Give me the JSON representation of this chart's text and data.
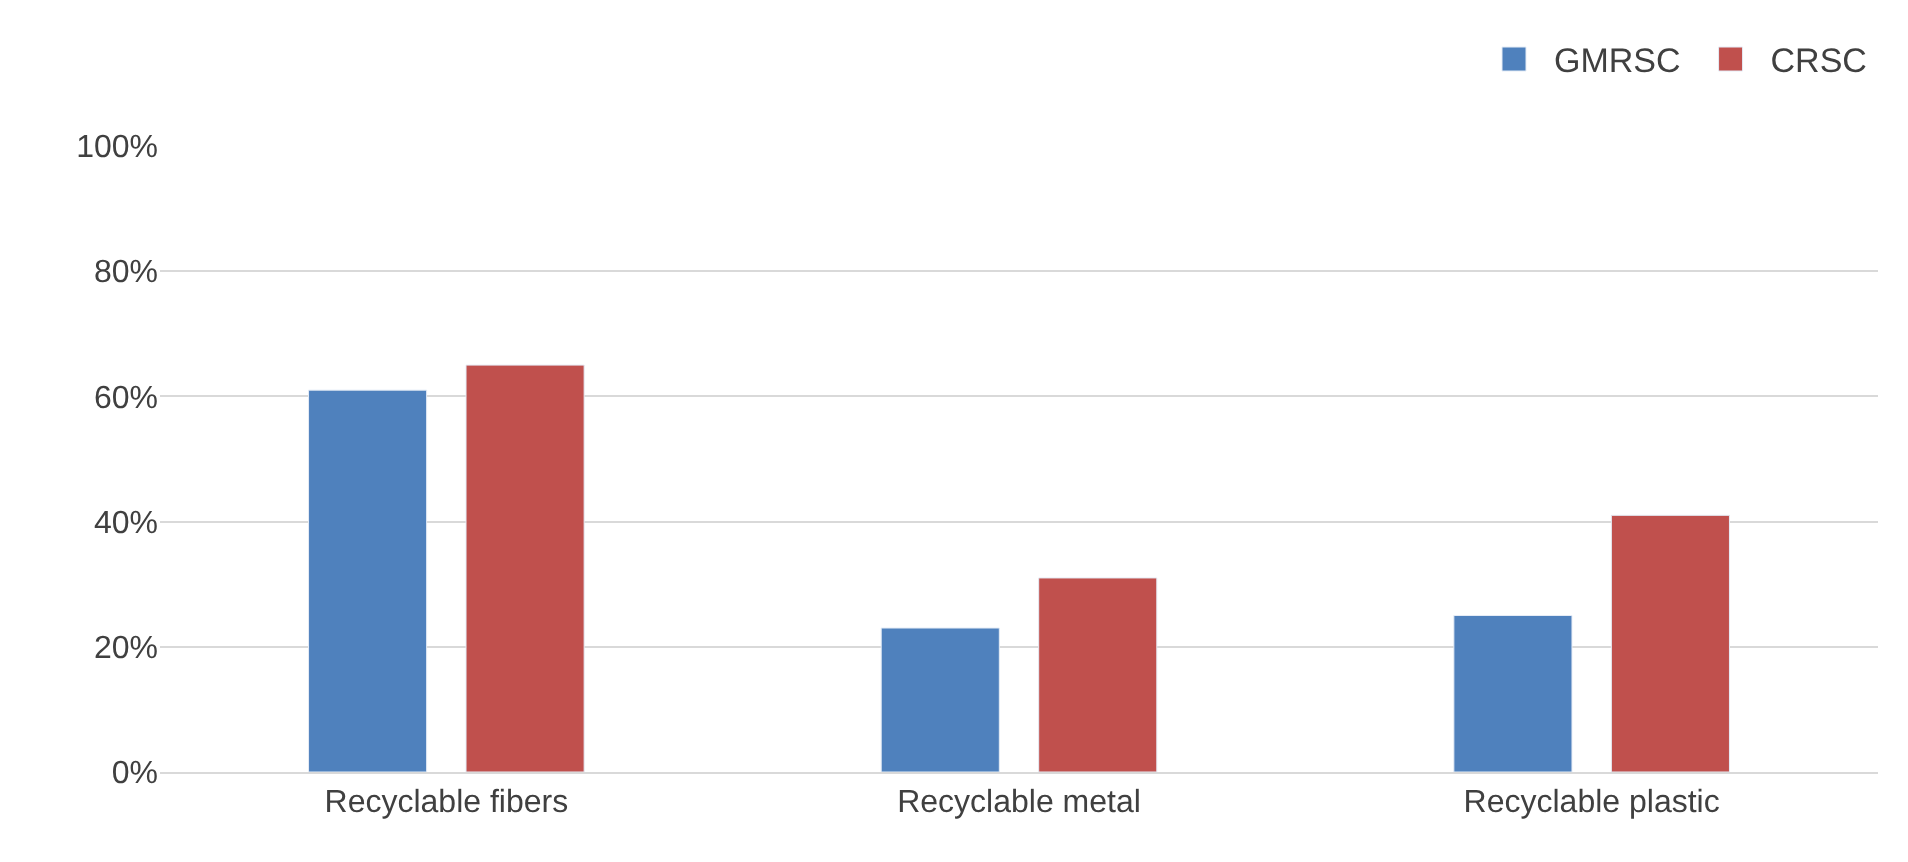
{
  "chart_data": {
    "type": "bar",
    "categories": [
      "Recyclable fibers",
      "Recyclable metal",
      "Recyclable plastic"
    ],
    "series": [
      {
        "name": "GMRSC",
        "color": "#4f81bd",
        "values": [
          61,
          23,
          25
        ]
      },
      {
        "name": "CRSC",
        "color": "#c0504d",
        "values": [
          65,
          31,
          41
        ]
      }
    ],
    "ylim": [
      0,
      100
    ],
    "yticks": [
      {
        "value": 0,
        "label": "0%"
      },
      {
        "value": 20,
        "label": "20%"
      },
      {
        "value": 40,
        "label": "40%"
      },
      {
        "value": 60,
        "label": "60%"
      },
      {
        "value": 80,
        "label": "80%"
      },
      {
        "value": 100,
        "label": "100%"
      }
    ],
    "grid": "y",
    "legend": "top right"
  }
}
